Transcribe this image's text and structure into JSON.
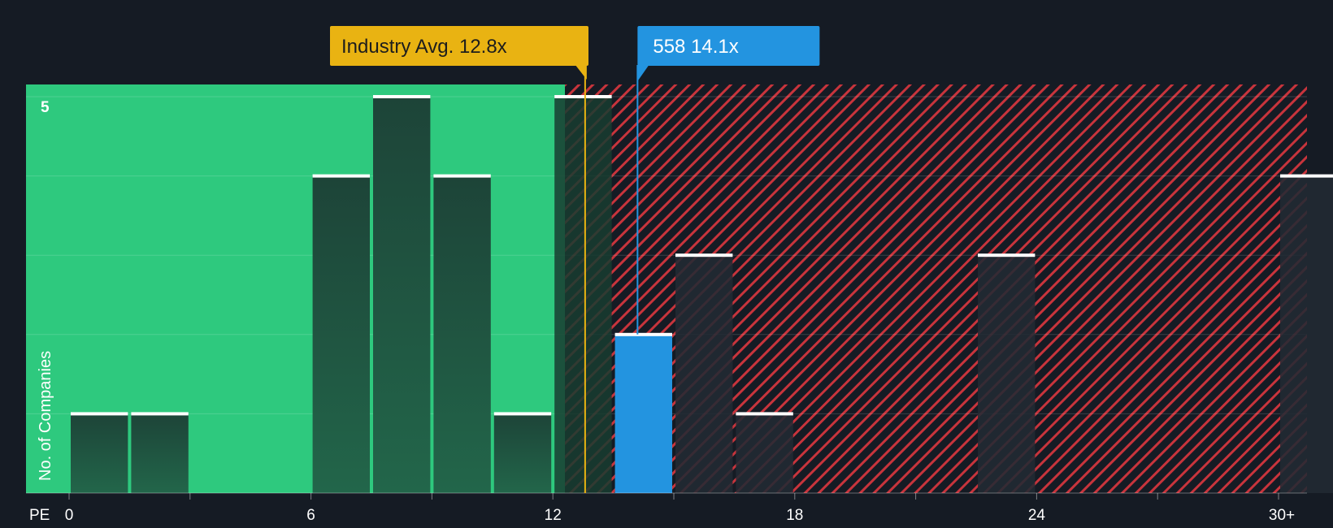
{
  "chart_data": {
    "type": "bar",
    "xlabel": "PE",
    "ylabel": "No. of Companies",
    "x_ticks": [
      "0",
      "6",
      "12",
      "18",
      "24",
      "30+"
    ],
    "y_ticks": [
      "5"
    ],
    "ylim": [
      0,
      5
    ],
    "bins": [
      {
        "start": 0,
        "end": 1.5,
        "count": 1
      },
      {
        "start": 1.5,
        "end": 3,
        "count": 1
      },
      {
        "start": 3,
        "end": 4.5,
        "count": 0
      },
      {
        "start": 4.5,
        "end": 6,
        "count": 0
      },
      {
        "start": 6,
        "end": 7.5,
        "count": 4
      },
      {
        "start": 7.5,
        "end": 9,
        "count": 5
      },
      {
        "start": 9,
        "end": 10.5,
        "count": 4
      },
      {
        "start": 10.5,
        "end": 12,
        "count": 1
      },
      {
        "start": 12,
        "end": 13.5,
        "count": 5
      },
      {
        "start": 13.5,
        "end": 15,
        "count": 2
      },
      {
        "start": 15,
        "end": 16.5,
        "count": 3
      },
      {
        "start": 16.5,
        "end": 18,
        "count": 1
      },
      {
        "start": 18,
        "end": 19.5,
        "count": 0
      },
      {
        "start": 19.5,
        "end": 21,
        "count": 0
      },
      {
        "start": 21,
        "end": 22.5,
        "count": 0
      },
      {
        "start": 22.5,
        "end": 24,
        "count": 3
      },
      {
        "start": 24,
        "end": 25.5,
        "count": 0
      },
      {
        "start": 25.5,
        "end": 27,
        "count": 0
      },
      {
        "start": 27,
        "end": 28.5,
        "count": 0
      },
      {
        "start": 28.5,
        "end": 30,
        "count": 0
      },
      {
        "start": 30,
        "end": 31.5,
        "count": 4
      }
    ],
    "highlight_bin_start": 13.5,
    "fair_zone_end": 12.3,
    "industry_avg": {
      "label": "Industry Avg. 12.8x",
      "value": 12.8
    },
    "company": {
      "label": "558 14.1x",
      "value": 14.1
    },
    "colors": {
      "background": "#151b24",
      "fair_zone": "#2ec97e",
      "bar_dark": "#1e4a3c",
      "bar_over": "#222a33",
      "hatch": "#c8343c",
      "highlight": "#2394e0",
      "industry_badge": "#e9b312",
      "bar_top": "#ffffff"
    }
  }
}
